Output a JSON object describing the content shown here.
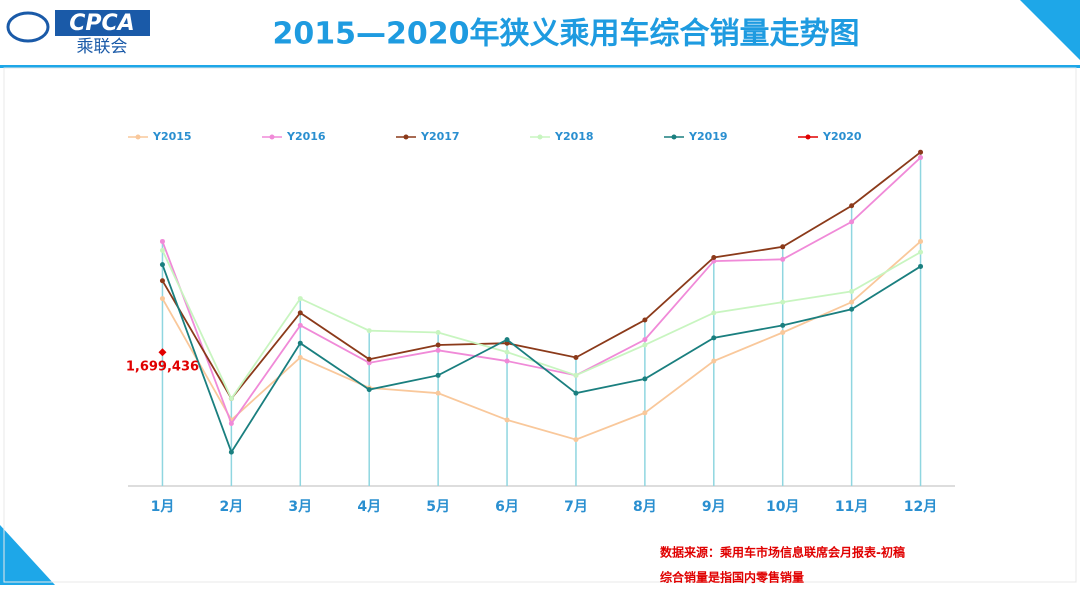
{
  "header": {
    "logo": "CPCA",
    "logo_sub": "乘联会"
  },
  "chart_data": {
    "type": "line",
    "title": "2015—2020年狭义乘用车综合销量走势图",
    "categories": [
      "1月",
      "2月",
      "3月",
      "4月",
      "5月",
      "6月",
      "7月",
      "8月",
      "9月",
      "10月",
      "11月",
      "12月"
    ],
    "ylim": [
      950000,
      2950000
    ],
    "series": [
      {
        "name": "Y2015",
        "color": "#f9c89b",
        "values": [
          2000000,
          1320000,
          1670000,
          1500000,
          1470000,
          1320000,
          1210000,
          1360000,
          1650000,
          1810000,
          1980000,
          2320000
        ]
      },
      {
        "name": "Y2016",
        "color": "#f08ad8",
        "values": [
          2320000,
          1300000,
          1850000,
          1640000,
          1710000,
          1650000,
          1570000,
          1770000,
          2210000,
          2220000,
          2430000,
          2790000
        ]
      },
      {
        "name": "Y2017",
        "color": "#8b3a1a",
        "values": [
          2100000,
          1440000,
          1920000,
          1660000,
          1740000,
          1750000,
          1670000,
          1880000,
          2230000,
          2290000,
          2520000,
          2820000
        ]
      },
      {
        "name": "Y2018",
        "color": "#c8f5c0",
        "values": [
          2270000,
          1440000,
          2000000,
          1820000,
          1810000,
          1700000,
          1570000,
          1740000,
          1920000,
          1980000,
          2040000,
          2260000
        ]
      },
      {
        "name": "Y2019",
        "color": "#1a7f7f",
        "values": [
          2190000,
          1140000,
          1750000,
          1490000,
          1570000,
          1770000,
          1470000,
          1550000,
          1780000,
          1850000,
          1940000,
          2180000
        ]
      },
      {
        "name": "Y2020",
        "color": "#e00000",
        "values": [
          1699436,
          null,
          null,
          null,
          null,
          null,
          null,
          null,
          null,
          null,
          null,
          null
        ],
        "value_labels": [
          "1,699,436",
          null,
          null,
          null,
          null,
          null,
          null,
          null,
          null,
          null,
          null,
          null
        ]
      }
    ]
  },
  "notes": [
    "数据来源：乘用车市场信息联席会月报表-初稿",
    "综合销量是指国内零售销量"
  ]
}
